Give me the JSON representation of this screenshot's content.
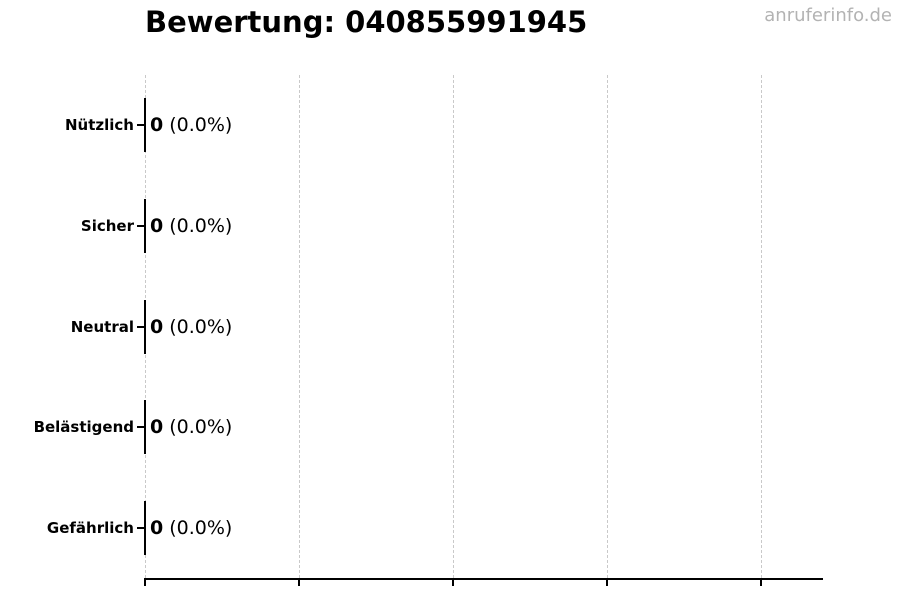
{
  "watermark": {
    "text": "anruferinfo.de",
    "color": "#b3b3b3"
  },
  "chart_data": {
    "type": "bar",
    "orientation": "horizontal",
    "title": "Bewertung: 040855991945",
    "categories": [
      "Nützlich",
      "Sicher",
      "Neutral",
      "Belästigend",
      "Gefährlich"
    ],
    "values": [
      0,
      0,
      0,
      0,
      0
    ],
    "percent_labels": [
      "(0.0%)",
      "(0.0%)",
      "(0.0%)",
      "(0.0%)",
      "(0.0%)"
    ],
    "xlim": [
      0,
      4.4
    ],
    "gridline_values": [
      0,
      1,
      2,
      3,
      4
    ],
    "grid": "dashed-vertical-gridlines",
    "legend": "none",
    "x_tick_labels": [],
    "colors": {
      "text": "#000000",
      "axis": "#000000",
      "bar_edge": "#000000",
      "gridline": "#c9c9c9",
      "watermark": "#b3b3b3"
    }
  }
}
